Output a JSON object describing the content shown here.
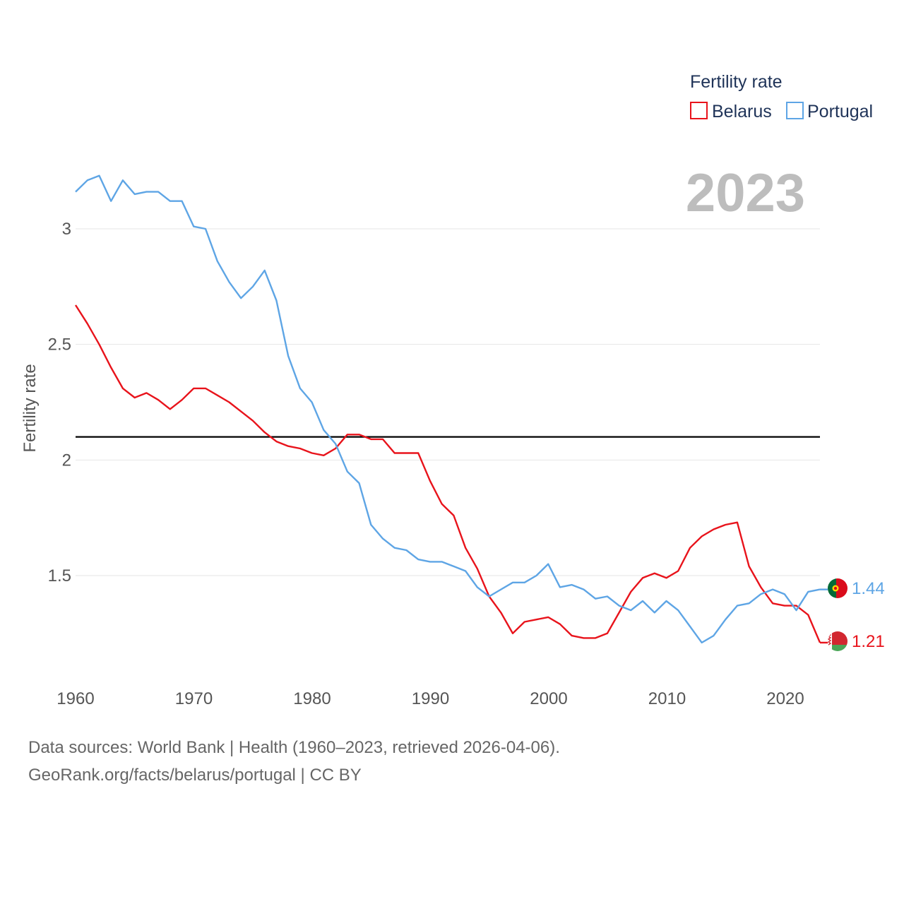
{
  "chart_data": {
    "type": "line",
    "ylabel": "Fertility rate",
    "legend": {
      "title": "Fertility rate",
      "placement": "top-right"
    },
    "year_label": "2023",
    "x_range": [
      1960,
      2023
    ],
    "ylim": [
      1.05,
      3.3
    ],
    "x_ticks": [
      1960,
      1970,
      1980,
      1990,
      2000,
      2010,
      2020
    ],
    "y_ticks": [
      1.5,
      2,
      2.5,
      3
    ],
    "y_tick_labels": [
      "1.5",
      "2",
      "2.5",
      "3"
    ],
    "replacement_level": 2.1,
    "x": [
      1960,
      1961,
      1962,
      1963,
      1964,
      1965,
      1966,
      1967,
      1968,
      1969,
      1970,
      1971,
      1972,
      1973,
      1974,
      1975,
      1976,
      1977,
      1978,
      1979,
      1980,
      1981,
      1982,
      1983,
      1984,
      1985,
      1986,
      1987,
      1988,
      1989,
      1990,
      1991,
      1992,
      1993,
      1994,
      1995,
      1996,
      1997,
      1998,
      1999,
      2000,
      2001,
      2002,
      2003,
      2004,
      2005,
      2006,
      2007,
      2008,
      2009,
      2010,
      2011,
      2012,
      2013,
      2014,
      2015,
      2016,
      2017,
      2018,
      2019,
      2020,
      2021,
      2022,
      2023
    ],
    "series": [
      {
        "name": "Belarus",
        "color": "#e8131b",
        "end_label": "1.21",
        "flag": "belarus-flag",
        "values": [
          2.67,
          2.59,
          2.5,
          2.4,
          2.31,
          2.27,
          2.29,
          2.26,
          2.22,
          2.26,
          2.31,
          2.31,
          2.28,
          2.25,
          2.21,
          2.17,
          2.12,
          2.08,
          2.06,
          2.05,
          2.03,
          2.02,
          2.05,
          2.11,
          2.11,
          2.09,
          2.09,
          2.03,
          2.03,
          2.03,
          1.91,
          1.81,
          1.76,
          1.62,
          1.53,
          1.41,
          1.34,
          1.25,
          1.3,
          1.31,
          1.32,
          1.29,
          1.24,
          1.23,
          1.23,
          1.25,
          1.34,
          1.43,
          1.49,
          1.51,
          1.49,
          1.52,
          1.62,
          1.67,
          1.7,
          1.72,
          1.73,
          1.54,
          1.45,
          1.38,
          1.37,
          1.37,
          1.33,
          1.21
        ]
      },
      {
        "name": "Portugal",
        "color": "#5ea5e5",
        "end_label": "1.44",
        "flag": "portugal-flag",
        "values": [
          3.16,
          3.21,
          3.23,
          3.12,
          3.21,
          3.15,
          3.16,
          3.16,
          3.12,
          3.12,
          3.01,
          3.0,
          2.86,
          2.77,
          2.7,
          2.75,
          2.82,
          2.69,
          2.45,
          2.31,
          2.25,
          2.13,
          2.07,
          1.95,
          1.9,
          1.72,
          1.66,
          1.62,
          1.61,
          1.57,
          1.56,
          1.56,
          1.54,
          1.52,
          1.45,
          1.41,
          1.44,
          1.47,
          1.47,
          1.5,
          1.55,
          1.45,
          1.46,
          1.44,
          1.4,
          1.41,
          1.37,
          1.35,
          1.39,
          1.34,
          1.39,
          1.35,
          1.28,
          1.21,
          1.24,
          1.31,
          1.37,
          1.38,
          1.42,
          1.44,
          1.42,
          1.35,
          1.43,
          1.44
        ]
      }
    ]
  },
  "footer": {
    "line1": "Data sources: World Bank | Health (1960–2023, retrieved 2026-04-06).",
    "line2": "GeoRank.org/facts/belarus/portugal | CC BY"
  }
}
